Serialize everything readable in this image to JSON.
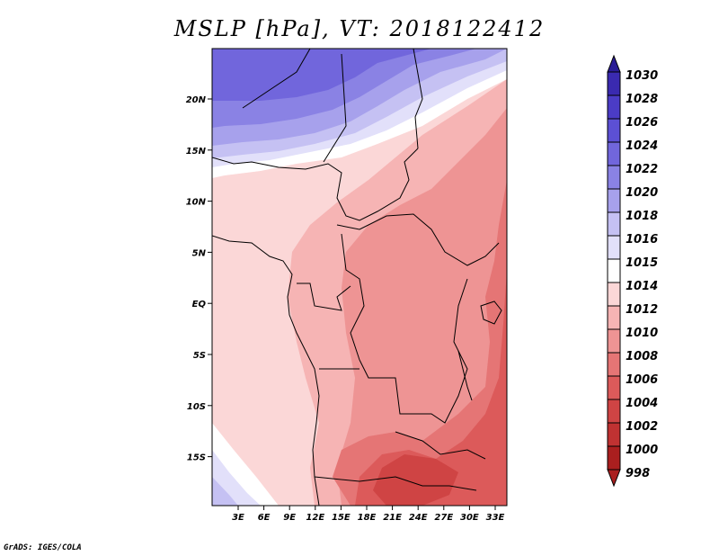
{
  "title": "MSLP [hPa], VT: 2018122412",
  "credit": "GrADS: IGES/COLA",
  "lat_ticks": [
    "20N",
    "15N",
    "10N",
    "5N",
    "EQ",
    "5S",
    "10S",
    "15S"
  ],
  "lon_ticks": [
    "3E",
    "6E",
    "9E",
    "12E",
    "15E",
    "18E",
    "21E",
    "24E",
    "27E",
    "30E",
    "33E"
  ],
  "colorbar": {
    "levels": [
      "1030",
      "1028",
      "1026",
      "1024",
      "1022",
      "1020",
      "1018",
      "1016",
      "1015",
      "1014",
      "1012",
      "1010",
      "1008",
      "1006",
      "1004",
      "1002",
      "1000",
      "998"
    ],
    "colors": [
      "#2a1c96",
      "#3a2ab0",
      "#4b3cc6",
      "#5c50d4",
      "#7166dc",
      "#8a82e4",
      "#a7a1ec",
      "#c5c1f3",
      "#e2e0fa",
      "#ffffff",
      "#fbd7d7",
      "#f6b4b4",
      "#ee9494",
      "#e57575",
      "#dc5a5a",
      "#cf4444",
      "#c03232",
      "#aa1f1f"
    ]
  },
  "colors": {
    "high": "#7166dc",
    "low": "#dc5a5a",
    "border": "#000000"
  }
}
